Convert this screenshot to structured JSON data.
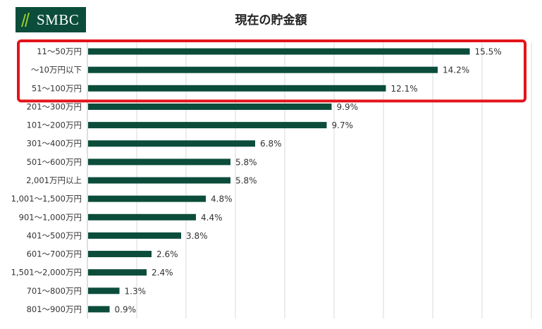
{
  "brand": {
    "logo_text": "SMBC",
    "color": "#0b4d3a"
  },
  "chart_data": {
    "type": "bar",
    "orientation": "horizontal",
    "title": "現在の貯金額",
    "xlabel": "",
    "ylabel": "",
    "categories": [
      "11～50万円",
      "～10万円以下",
      "51～100万円",
      "201～300万円",
      "101～200万円",
      "301～400万円",
      "501～600万円",
      "2,001万円以上",
      "1,001～1,500万円",
      "901～1,000万円",
      "401～500万円",
      "601～700万円",
      "1,501～2,000万円",
      "701～800万円",
      "801～900万円"
    ],
    "values": [
      15.5,
      14.2,
      12.1,
      9.9,
      9.7,
      6.8,
      5.8,
      5.8,
      4.8,
      4.4,
      3.8,
      2.6,
      2.4,
      1.3,
      0.9
    ],
    "value_labels": [
      "15.5%",
      "14.2%",
      "12.1%",
      "9.9%",
      "9.7%",
      "6.8%",
      "5.8%",
      "5.8%",
      "4.8%",
      "4.4%",
      "3.8%",
      "2.6%",
      "2.4%",
      "1.3%",
      "0.9%"
    ],
    "xlim": [
      0,
      18
    ],
    "grid": true,
    "bar_color": "#0b4d3a",
    "highlight": {
      "categories": [
        "11～50万円",
        "～10万円以下",
        "51～100万円"
      ],
      "color": "#e3141b"
    }
  }
}
